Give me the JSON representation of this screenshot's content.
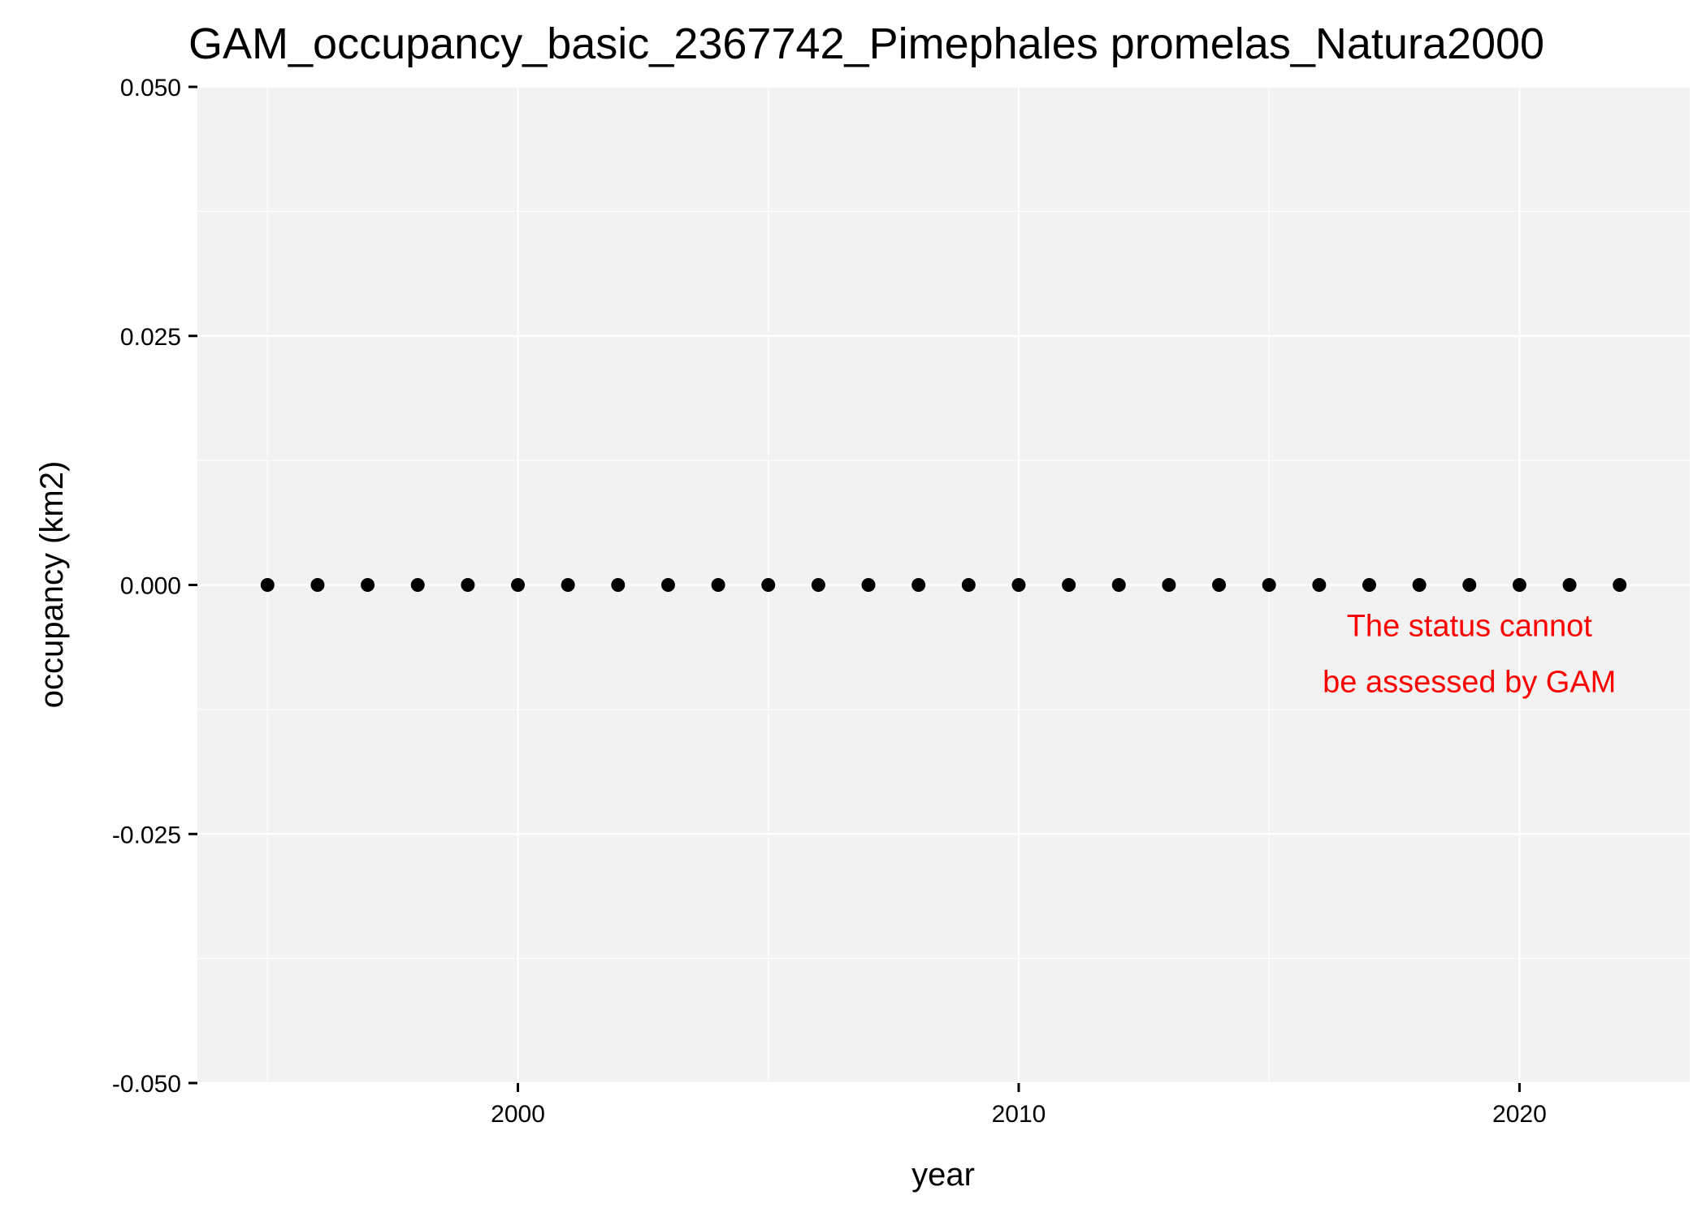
{
  "chart_data": {
    "type": "scatter",
    "title": "GAM_occupancy_basic_2367742_Pimephales promelas_Natura2000",
    "xlabel": "year",
    "ylabel": "occupancy (km2)",
    "xlim": [
      1993.6,
      2023.4
    ],
    "ylim": [
      -0.05,
      0.05
    ],
    "x_ticks": [
      2000,
      2010,
      2020
    ],
    "x_minor_ticks": [
      1995,
      2005,
      2015
    ],
    "y_ticks": [
      -0.05,
      -0.025,
      0,
      0.025,
      0.05
    ],
    "y_tick_labels": [
      "-0.050",
      "-0.025",
      "0.000",
      "0.025",
      "0.050"
    ],
    "y_minor_ticks": [
      -0.0375,
      -0.0125,
      0.0125,
      0.0375
    ],
    "grid": true,
    "legend": "none",
    "colors": {
      "panel_background": "#f2f2f2",
      "point": "#000000",
      "annotation": "#ff0000"
    },
    "points": [
      {
        "x": 1995,
        "y": 0
      },
      {
        "x": 1996,
        "y": 0
      },
      {
        "x": 1997,
        "y": 0
      },
      {
        "x": 1998,
        "y": 0
      },
      {
        "x": 1999,
        "y": 0
      },
      {
        "x": 2000,
        "y": 0
      },
      {
        "x": 2001,
        "y": 0
      },
      {
        "x": 2002,
        "y": 0
      },
      {
        "x": 2003,
        "y": 0
      },
      {
        "x": 2004,
        "y": 0
      },
      {
        "x": 2005,
        "y": 0
      },
      {
        "x": 2006,
        "y": 0
      },
      {
        "x": 2007,
        "y": 0
      },
      {
        "x": 2008,
        "y": 0
      },
      {
        "x": 2009,
        "y": 0
      },
      {
        "x": 2010,
        "y": 0
      },
      {
        "x": 2011,
        "y": 0
      },
      {
        "x": 2012,
        "y": 0
      },
      {
        "x": 2013,
        "y": 0
      },
      {
        "x": 2014,
        "y": 0
      },
      {
        "x": 2015,
        "y": 0
      },
      {
        "x": 2016,
        "y": 0
      },
      {
        "x": 2017,
        "y": 0
      },
      {
        "x": 2018,
        "y": 0
      },
      {
        "x": 2019,
        "y": 0
      },
      {
        "x": 2020,
        "y": 0
      },
      {
        "x": 2021,
        "y": 0
      },
      {
        "x": 2022,
        "y": 0
      }
    ],
    "annotation": {
      "lines": [
        "The status cannot",
        "be assessed by GAM"
      ],
      "x": 2019,
      "y": -0.004
    }
  }
}
